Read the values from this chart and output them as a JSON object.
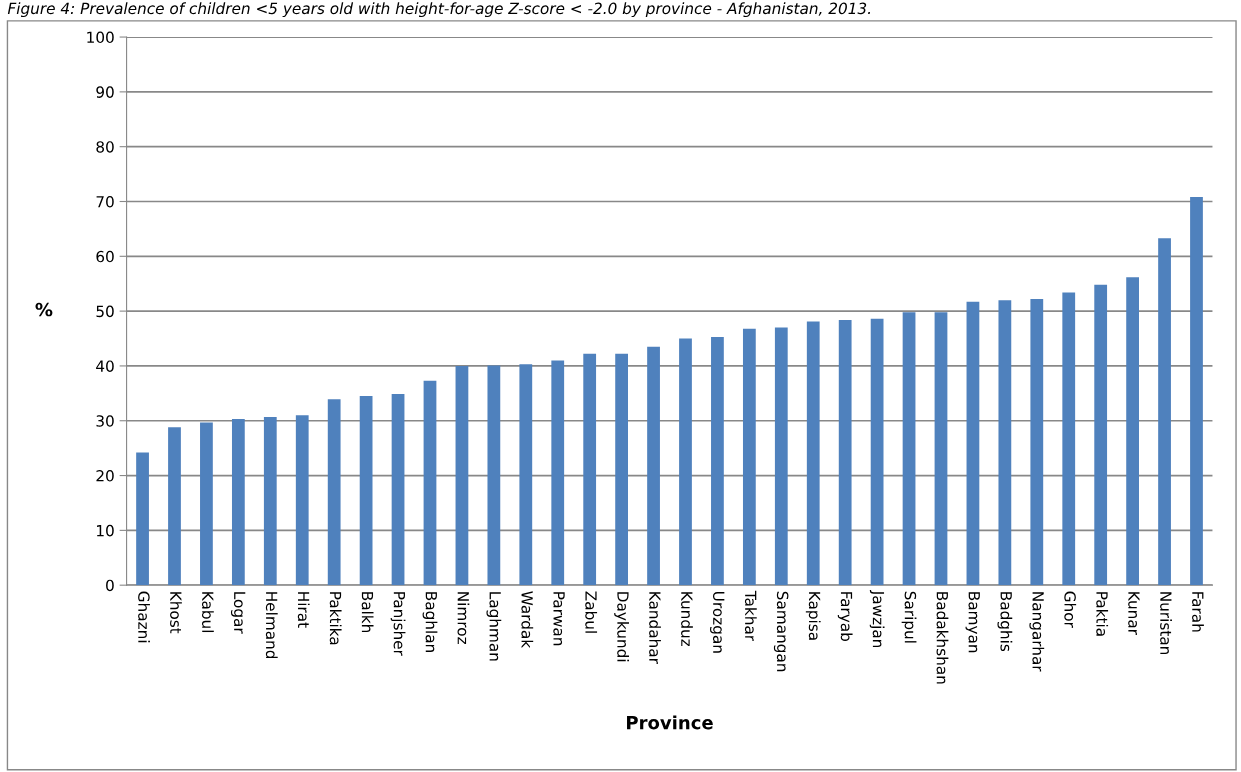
{
  "chart_data": {
    "type": "bar",
    "title": "Figure 4: Prevalence of children <5 years old with height-for-age Z-score < -2.0 by province - Afghanistan, 2013.",
    "xlabel": "Province",
    "ylabel": "%",
    "categories": [
      "Ghazni",
      "Khost",
      "Kabul",
      "Logar",
      "Helmand",
      "Hirat",
      "Paktika",
      "Balkh",
      "Panjsher",
      "Baghlan",
      "Nimroz",
      "Laghman",
      "Wardak",
      "Parwan",
      "Zabul",
      "Daykundi",
      "Kandahar",
      "Kunduz",
      "Urozgan",
      "Takhar",
      "Samangan",
      "Kapisa",
      "Faryab",
      "Jawzjan",
      "Saripul",
      "Badakhshan",
      "Bamyan",
      "Badghis",
      "Nangarhar",
      "Ghor",
      "Paktia",
      "Kunar",
      "Nuristan",
      "Farah"
    ],
    "values": [
      24.2,
      28.8,
      29.7,
      30.3,
      30.7,
      31.0,
      33.9,
      34.5,
      34.9,
      37.3,
      40.0,
      40.1,
      40.3,
      41.0,
      42.2,
      42.2,
      43.5,
      45.0,
      45.3,
      46.8,
      47.0,
      48.1,
      48.4,
      48.6,
      49.8,
      49.8,
      51.7,
      52.0,
      52.2,
      53.4,
      54.8,
      56.2,
      63.3,
      70.8
    ],
    "color": "#4f81bd",
    "ylim": [
      0,
      100
    ],
    "yticks": [
      0,
      10,
      20,
      30,
      40,
      50,
      60,
      70,
      80,
      90,
      100
    ],
    "grid": "y",
    "legend": false
  }
}
